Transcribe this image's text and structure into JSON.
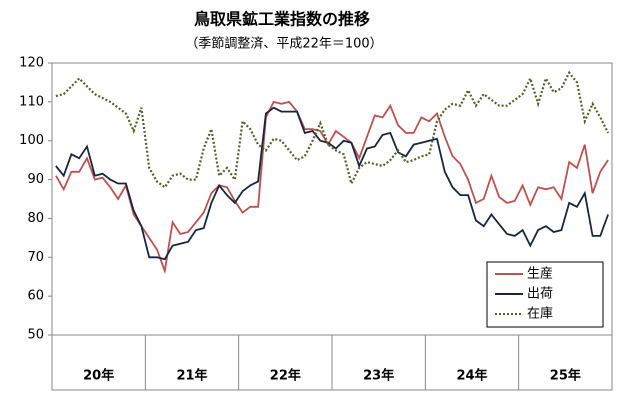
{
  "chart_data": {
    "type": "line",
    "title": "鳥取県鉱工業指数の推移",
    "subtitle": "（季節調整済、平成22年＝100）",
    "categories": [
      "20年",
      null,
      null,
      null,
      null,
      null,
      null,
      null,
      null,
      null,
      null,
      null,
      "21年",
      null,
      null,
      null,
      null,
      null,
      null,
      null,
      null,
      null,
      null,
      null,
      "22年",
      null,
      null,
      null,
      null,
      null,
      null,
      null,
      null,
      null,
      null,
      null,
      "23年",
      null,
      null,
      null,
      null,
      null,
      null,
      null,
      null,
      null,
      null,
      null,
      "24年",
      null,
      null,
      null,
      null,
      null,
      null,
      null,
      null,
      null,
      null,
      null,
      "25年",
      null,
      null,
      null,
      null,
      null,
      null,
      null,
      null,
      null,
      null,
      null
    ],
    "ylim": [
      50,
      120
    ],
    "yticks": [
      50,
      60,
      70,
      80,
      90,
      100,
      110,
      120
    ],
    "legend": "lower right",
    "series": [
      {
        "name": "生産",
        "color": "#c0504d",
        "dash": "solid",
        "values": [
          91,
          87.5,
          92,
          92,
          95.5,
          90,
          90.5,
          88,
          85,
          88.5,
          81,
          78,
          75,
          72,
          66.5,
          79,
          76,
          76.5,
          79,
          81.5,
          86.5,
          88.5,
          88,
          84.5,
          81.5,
          83,
          83,
          106,
          110,
          109.5,
          110,
          107.5,
          103,
          103,
          102.5,
          99,
          102.5,
          101,
          99.5,
          95.5,
          101,
          106.5,
          106,
          109,
          104,
          102,
          102,
          106,
          105,
          107,
          101,
          96,
          94,
          90,
          84,
          85,
          91,
          85.5,
          84,
          84.5,
          88.5,
          83.5,
          88,
          87.5,
          88,
          85,
          94.5,
          93,
          99,
          86.5,
          92,
          95
        ]
      },
      {
        "name": "出荷",
        "color": "#17263c",
        "dash": "solid",
        "values": [
          93.5,
          91,
          96.5,
          95.5,
          98.5,
          91,
          91.5,
          90,
          89,
          89,
          82,
          78,
          70,
          70,
          69.5,
          73,
          73.5,
          74,
          77,
          77.5,
          84,
          88.5,
          86,
          84,
          87,
          88.5,
          89.5,
          107,
          108.5,
          107.5,
          107.5,
          107.5,
          102,
          102.5,
          100,
          99.5,
          98,
          100,
          99.5,
          93.5,
          98,
          98.5,
          101.5,
          102,
          97,
          96,
          99,
          99.5,
          100,
          100.5,
          92,
          88,
          86,
          86,
          79.5,
          78,
          81,
          78.5,
          76,
          75.5,
          77,
          73,
          77,
          78,
          76.5,
          77,
          84,
          83,
          86.5,
          75.5,
          75.5,
          81
        ]
      },
      {
        "name": "在庫",
        "color": "#4f6228",
        "dash": "dotted",
        "values": [
          111.5,
          112,
          114,
          116,
          114,
          112,
          111,
          110,
          108.5,
          107,
          102.5,
          108.5,
          93,
          89.5,
          88,
          91,
          91.5,
          90,
          90,
          98,
          103,
          91,
          93,
          90,
          105,
          103,
          99,
          97.5,
          100.5,
          100,
          97.5,
          95,
          96,
          100,
          104.5,
          99,
          97.5,
          96.5,
          89,
          93,
          94.5,
          94,
          93.5,
          95,
          97.5,
          94.5,
          95,
          96,
          96.5,
          105,
          108,
          109.5,
          109,
          113,
          109,
          112,
          110.5,
          109,
          109,
          110.5,
          112,
          116,
          109.5,
          116,
          112.5,
          113.5,
          117.5,
          115,
          105,
          109.5,
          106,
          102
        ]
      }
    ]
  }
}
